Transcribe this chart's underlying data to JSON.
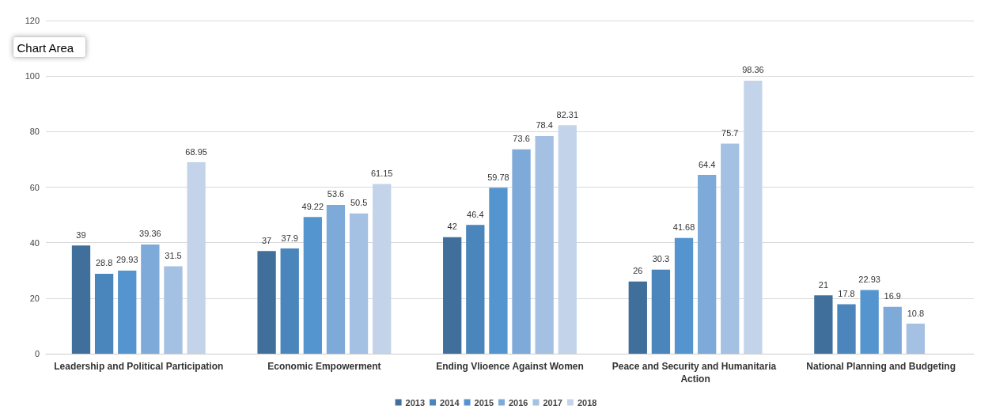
{
  "chart_data": {
    "type": "bar",
    "categories": [
      "Leadership and Political Participation",
      "Economic Empowerment",
      "Ending Vlioence Against Women",
      "Peace and Security and Humanitaria Action",
      "National Planning and Budgeting"
    ],
    "series": [
      {
        "name": "2013",
        "color": "#3f6f9a",
        "values": [
          39,
          37,
          42,
          26,
          21
        ]
      },
      {
        "name": "2014",
        "color": "#4a85bb",
        "values": [
          28.8,
          37.9,
          46.4,
          30.3,
          17.8
        ]
      },
      {
        "name": "2015",
        "color": "#5595cf",
        "values": [
          29.93,
          49.22,
          59.78,
          41.68,
          22.93
        ]
      },
      {
        "name": "2016",
        "color": "#7eaad9",
        "values": [
          39.36,
          53.6,
          73.6,
          64.4,
          16.9
        ]
      },
      {
        "name": "2017",
        "color": "#a4c1e4",
        "values": [
          31.5,
          50.5,
          78.4,
          75.7,
          10.8
        ]
      },
      {
        "name": "2018",
        "color": "#c3d4ea",
        "values": [
          68.95,
          61.15,
          82.31,
          98.36,
          null
        ]
      }
    ],
    "ylim": [
      0,
      120
    ],
    "yticks": [
      0,
      20,
      40,
      60,
      80,
      100,
      120
    ],
    "grid": "y",
    "legend": "bottom",
    "data_labels": true,
    "annotations": [
      "Chart Area"
    ]
  }
}
